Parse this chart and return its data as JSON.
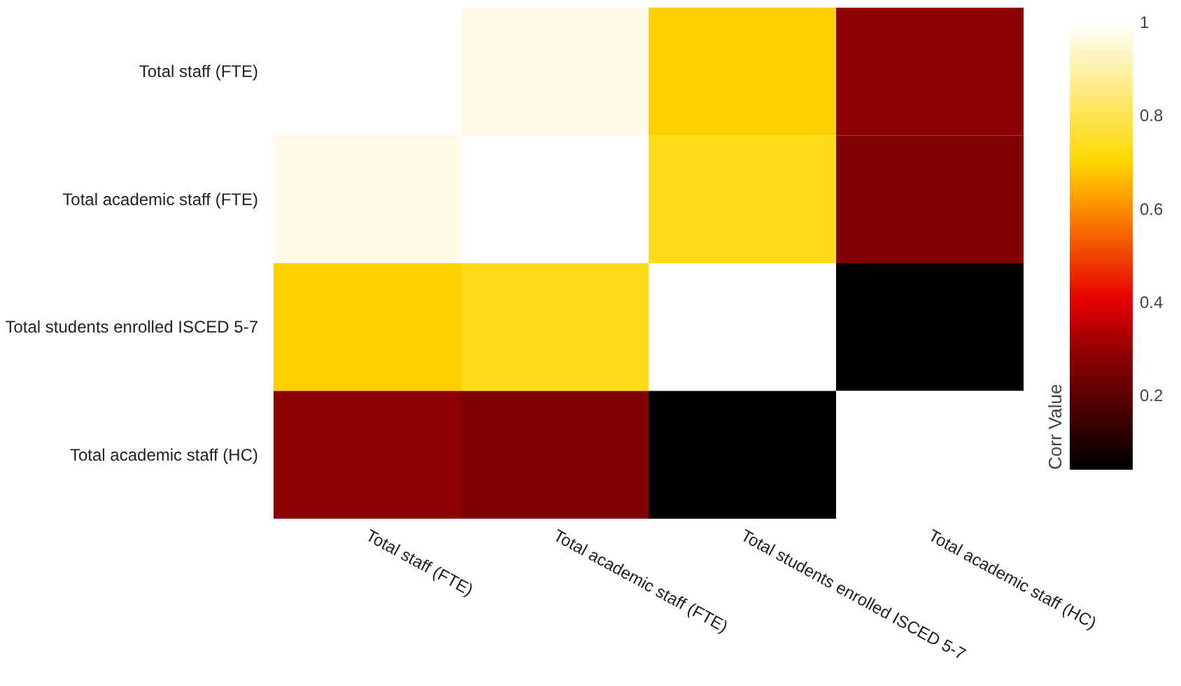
{
  "chart_data": {
    "type": "heatmap",
    "legend_title": null,
    "clabel": "Corr Value",
    "categories": [
      "Total staff (FTE)",
      "Total academic staff (FTE)",
      "Total students enrolled ISCED 5-7",
      "Total academic staff (HC)"
    ],
    "y_categories": [
      "Total staff (FTE)",
      "Total academic staff (FTE)",
      "Total students enrolled ISCED 5-7",
      "Total academic staff (HC)"
    ],
    "cells": [
      [
        1,
        0.97,
        0.69,
        0.28
      ],
      [
        0.97,
        1,
        0.73,
        0.26
      ],
      [
        0.69,
        0.73,
        1,
        0.04
      ],
      [
        0.28,
        0.26,
        0.04,
        1
      ]
    ],
    "clim": [
      0.04,
      1
    ],
    "cticks": [
      0.2,
      0.4,
      0.6,
      0.8,
      1
    ]
  }
}
